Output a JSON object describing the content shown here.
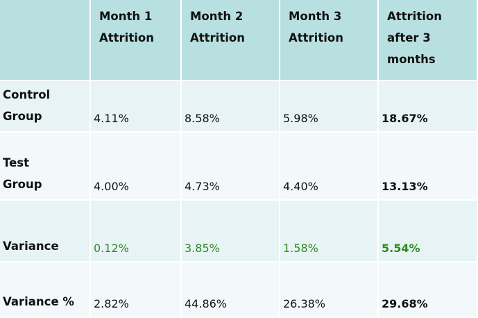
{
  "chart_data": {
    "type": "table",
    "columns": [
      "",
      "Month 1\nAttrition",
      "Month 2\nAttrition",
      "Month 3\nAttrition",
      "Attrition\nafter 3\nmonths"
    ],
    "rows": [
      {
        "label": "Control\nGroup",
        "values": [
          "4.11%",
          "8.58%",
          "5.98%",
          "18.67%"
        ]
      },
      {
        "label": "Test\nGroup",
        "values": [
          "4.00%",
          "4.73%",
          "4.40%",
          "13.13%"
        ]
      },
      {
        "label": "Variance",
        "values": [
          "0.12%",
          "3.85%",
          "1.58%",
          "5.54%"
        ]
      },
      {
        "label": "Variance %",
        "values": [
          "2.82%",
          "44.86%",
          "26.38%",
          "29.68%"
        ]
      }
    ]
  },
  "colors": {
    "header_bg": "#b9e0e1",
    "row_bg_alt_1": "#e7f3f4",
    "row_bg_alt_2": "#f3f9fa",
    "variance_text": "#2e8b1e"
  }
}
